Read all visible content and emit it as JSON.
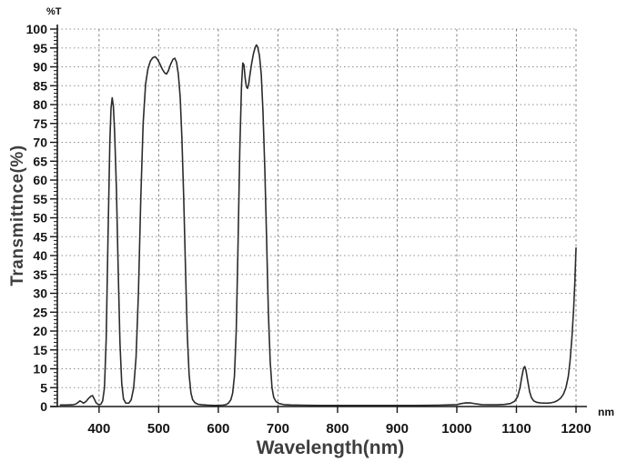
{
  "chart_data": {
    "type": "line",
    "title": "",
    "xlabel": "Wavelength(nm)",
    "ylabel": "Transmittnce(%)",
    "y_unit_label": "%T",
    "x_unit_label": "nm",
    "xlim": [
      330,
      1200
    ],
    "ylim": [
      0,
      100
    ],
    "x_ticks": [
      400,
      500,
      600,
      700,
      800,
      900,
      1000,
      1100,
      1200
    ],
    "y_tick_step": 5,
    "y_minor_tick_step": 1,
    "grid": true,
    "legend": "none",
    "colors": {
      "curve": "#2b2b2b",
      "grid_h": "#8f8f8f",
      "grid_v": "#7d7d7d",
      "axis": "#161616",
      "tick_label": "#141414",
      "axis_title": "#3e3e3e",
      "background": "#ffffff"
    },
    "series": [
      {
        "name": "transmittance",
        "points": [
          [
            335,
            0.4
          ],
          [
            345,
            0.4
          ],
          [
            355,
            0.45
          ],
          [
            360,
            0.6
          ],
          [
            364,
            1.0
          ],
          [
            368,
            1.5
          ],
          [
            371,
            1.2
          ],
          [
            374,
            0.9
          ],
          [
            378,
            1.3
          ],
          [
            382,
            2.1
          ],
          [
            386,
            2.7
          ],
          [
            389,
            2.9
          ],
          [
            392,
            2.0
          ],
          [
            395,
            1.0
          ],
          [
            399,
            0.5
          ],
          [
            403,
            0.6
          ],
          [
            406,
            1.5
          ],
          [
            409,
            5
          ],
          [
            412,
            18
          ],
          [
            415,
            45
          ],
          [
            418,
            70
          ],
          [
            420,
            79
          ],
          [
            422,
            81.8
          ],
          [
            424,
            79.5
          ],
          [
            426,
            73
          ],
          [
            429,
            58
          ],
          [
            432,
            37
          ],
          [
            435,
            17
          ],
          [
            438,
            6
          ],
          [
            441,
            2
          ],
          [
            445,
            0.9
          ],
          [
            450,
            0.9
          ],
          [
            454,
            1.8
          ],
          [
            458,
            5
          ],
          [
            462,
            13
          ],
          [
            466,
            30
          ],
          [
            470,
            55
          ],
          [
            474,
            75
          ],
          [
            478,
            85.5
          ],
          [
            482,
            89.5
          ],
          [
            486,
            91.5
          ],
          [
            490,
            92.4
          ],
          [
            494,
            92.7
          ],
          [
            498,
            92
          ],
          [
            502,
            90.8
          ],
          [
            506,
            89.4
          ],
          [
            510,
            88.4
          ],
          [
            513,
            88.1
          ],
          [
            516,
            88.9
          ],
          [
            520,
            90.7
          ],
          [
            524,
            92
          ],
          [
            527,
            92.3
          ],
          [
            530,
            91.2
          ],
          [
            533,
            88
          ],
          [
            536,
            82
          ],
          [
            539,
            71
          ],
          [
            542,
            55
          ],
          [
            545,
            36
          ],
          [
            548,
            19
          ],
          [
            551,
            8.5
          ],
          [
            554,
            3.6
          ],
          [
            557,
            1.8
          ],
          [
            561,
            1.0
          ],
          [
            566,
            0.6
          ],
          [
            573,
            0.45
          ],
          [
            583,
            0.35
          ],
          [
            595,
            0.3
          ],
          [
            607,
            0.35
          ],
          [
            613,
            0.5
          ],
          [
            617,
            0.9
          ],
          [
            621,
            1.8
          ],
          [
            624,
            3.5
          ],
          [
            627,
            8
          ],
          [
            630,
            20
          ],
          [
            633,
            42
          ],
          [
            636,
            68
          ],
          [
            639,
            85
          ],
          [
            641,
            91
          ],
          [
            643,
            90.5
          ],
          [
            645,
            87
          ],
          [
            647,
            84.8
          ],
          [
            649,
            84.3
          ],
          [
            651,
            85.5
          ],
          [
            653,
            87.8
          ],
          [
            656,
            91
          ],
          [
            659,
            93.6
          ],
          [
            662,
            95.2
          ],
          [
            664,
            95.8
          ],
          [
            666,
            95.3
          ],
          [
            669,
            93
          ],
          [
            672,
            88
          ],
          [
            675,
            78
          ],
          [
            678,
            63
          ],
          [
            681,
            44
          ],
          [
            684,
            25
          ],
          [
            687,
            12
          ],
          [
            690,
            5
          ],
          [
            693,
            2.4
          ],
          [
            697,
            1.3
          ],
          [
            702,
            0.8
          ],
          [
            710,
            0.5
          ],
          [
            722,
            0.4
          ],
          [
            740,
            0.35
          ],
          [
            770,
            0.3
          ],
          [
            810,
            0.3
          ],
          [
            850,
            0.3
          ],
          [
            890,
            0.3
          ],
          [
            930,
            0.3
          ],
          [
            970,
            0.35
          ],
          [
            1000,
            0.5
          ],
          [
            1008,
            0.8
          ],
          [
            1016,
            1.0
          ],
          [
            1024,
            0.95
          ],
          [
            1032,
            0.7
          ],
          [
            1042,
            0.5
          ],
          [
            1055,
            0.45
          ],
          [
            1068,
            0.45
          ],
          [
            1080,
            0.55
          ],
          [
            1090,
            0.8
          ],
          [
            1097,
            1.4
          ],
          [
            1102,
            2.6
          ],
          [
            1106,
            5
          ],
          [
            1109,
            7.8
          ],
          [
            1112,
            10.2
          ],
          [
            1114,
            10.6
          ],
          [
            1116,
            9.6
          ],
          [
            1119,
            6.8
          ],
          [
            1122,
            4
          ],
          [
            1125,
            2.4
          ],
          [
            1129,
            1.5
          ],
          [
            1134,
            1.1
          ],
          [
            1141,
            0.95
          ],
          [
            1150,
            0.9
          ],
          [
            1158,
            1.0
          ],
          [
            1164,
            1.2
          ],
          [
            1169,
            1.6
          ],
          [
            1174,
            2.2
          ],
          [
            1179,
            3.3
          ],
          [
            1183,
            5
          ],
          [
            1187,
            8
          ],
          [
            1190,
            12
          ],
          [
            1193,
            18
          ],
          [
            1196,
            26
          ],
          [
            1198,
            33
          ],
          [
            1200,
            42
          ]
        ]
      }
    ]
  }
}
